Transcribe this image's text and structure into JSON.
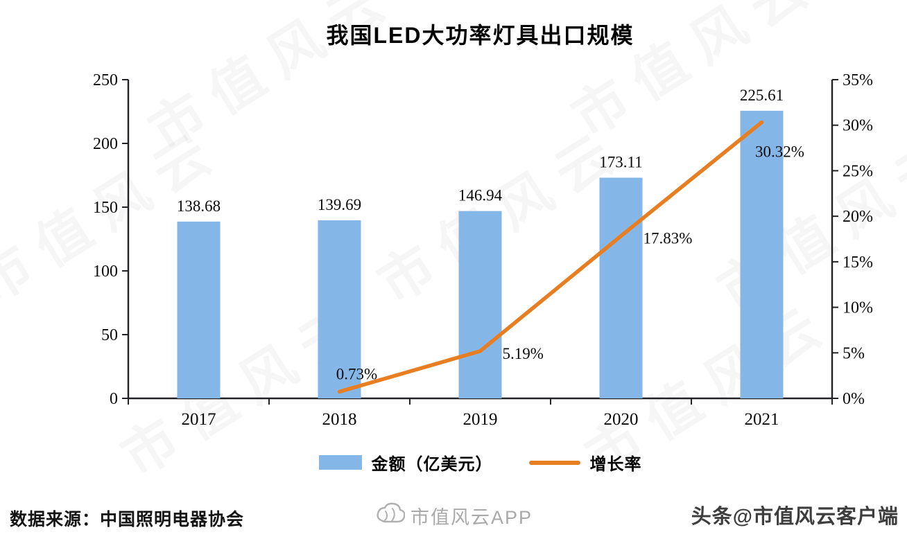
{
  "title": "我国LED大功率灯具出口规模",
  "watermark_text": "市值风云",
  "chart_data": {
    "type": "bar",
    "categories": [
      "2017",
      "2018",
      "2019",
      "2020",
      "2021"
    ],
    "series": [
      {
        "name": "金额（亿美元）",
        "type": "bar",
        "color": "#84b7e7",
        "values": [
          138.68,
          139.69,
          146.94,
          173.11,
          225.61
        ],
        "labels": [
          "138.68",
          "139.69",
          "146.94",
          "173.11",
          "225.61"
        ]
      },
      {
        "name": "增长率",
        "type": "line",
        "color": "#e87e22",
        "values": [
          null,
          0.73,
          5.19,
          17.83,
          30.32
        ],
        "labels": [
          "",
          "0.73%",
          "5.19%",
          "17.83%",
          "30.32%"
        ]
      }
    ],
    "left_axis": {
      "min": 0,
      "max": 250,
      "ticks": [
        "0",
        "50",
        "100",
        "150",
        "200",
        "250"
      ]
    },
    "right_axis": {
      "min": 0,
      "max": 35,
      "ticks": [
        "0%",
        "5%",
        "10%",
        "15%",
        "20%",
        "25%",
        "30%",
        "35%"
      ]
    },
    "grid": false,
    "legend_position": "bottom"
  },
  "footer": {
    "source": "数据来源：中国照明电器协会",
    "watermark_app": "市值风云APP",
    "credit": "头条@市值风云客户端"
  }
}
